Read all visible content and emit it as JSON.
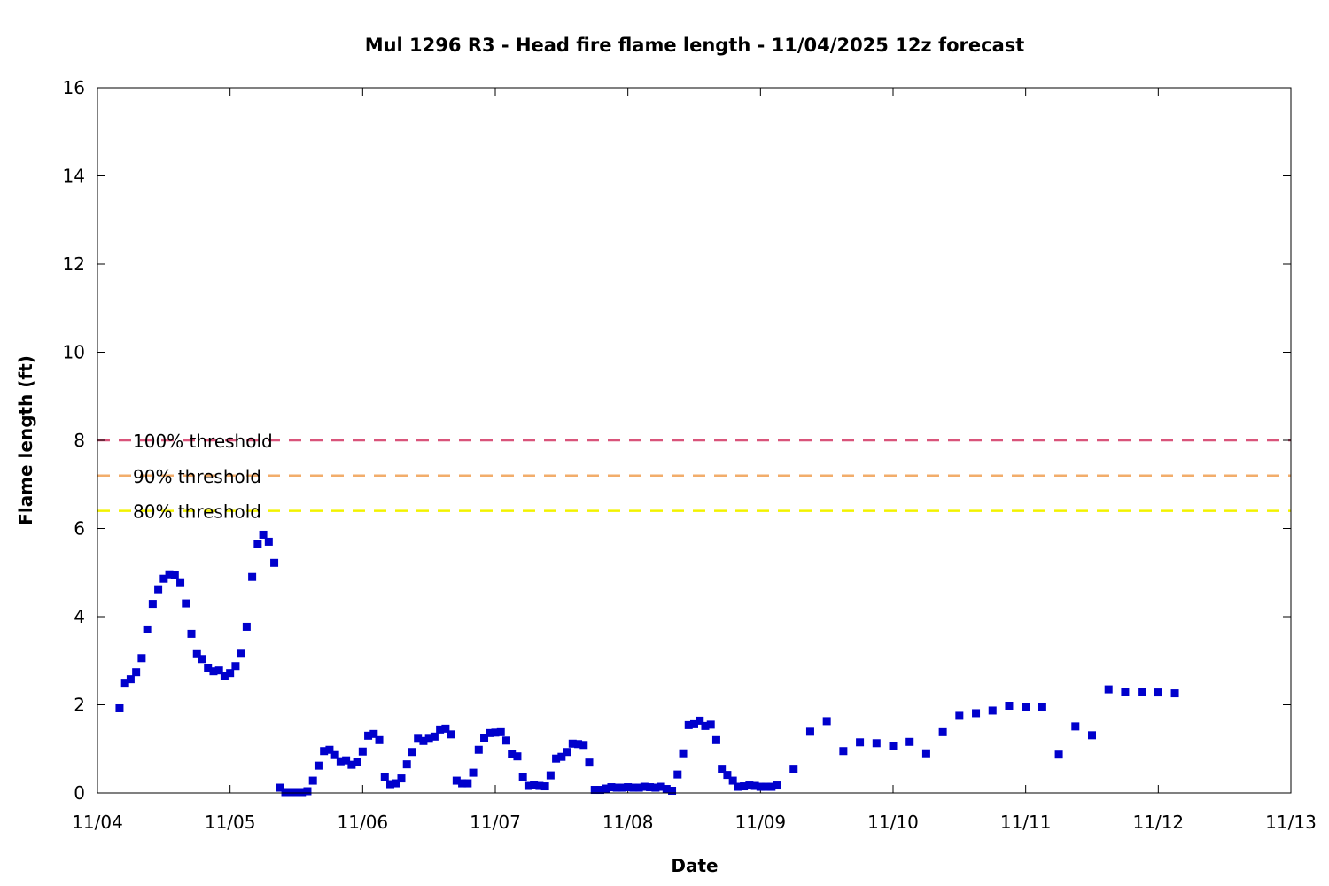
{
  "chart_data": {
    "type": "scatter",
    "title": "Mul 1296 R3 - Head fire flame length - 11/04/2025 12z forecast",
    "xlabel": "Date",
    "ylabel": "Flame length (ft)",
    "x_ticks": [
      "11/04",
      "11/05",
      "11/06",
      "11/07",
      "11/08",
      "11/09",
      "11/10",
      "11/11",
      "11/12",
      "11/13"
    ],
    "xlim": [
      "2025-11-04T00:00",
      "2025-11-13T00:00"
    ],
    "ylim": [
      0,
      16
    ],
    "y_ticks": [
      0,
      2,
      4,
      6,
      8,
      10,
      12,
      14,
      16
    ],
    "grid": false,
    "legend_placement": "left",
    "thresholds": [
      {
        "name": "100% threshold",
        "value": 8.0,
        "color": "#d9547a",
        "style": "dashed"
      },
      {
        "name": "90% threshold",
        "value": 7.2,
        "color": "#f2ad6b",
        "style": "dashed"
      },
      {
        "name": "80% threshold",
        "value": 6.4,
        "color": "#f2f200",
        "style": "dashed"
      }
    ],
    "series": [
      {
        "marker": "square",
        "color": "#0000cc",
        "points": [
          [
            "2025-11-04T04:00",
            1.92
          ],
          [
            "2025-11-04T05:00",
            2.5
          ],
          [
            "2025-11-04T06:00",
            2.58
          ],
          [
            "2025-11-04T07:00",
            2.74
          ],
          [
            "2025-11-04T08:00",
            3.06
          ],
          [
            "2025-11-04T09:00",
            3.71
          ],
          [
            "2025-11-04T10:00",
            4.29
          ],
          [
            "2025-11-04T11:00",
            4.62
          ],
          [
            "2025-11-04T12:00",
            4.86
          ],
          [
            "2025-11-04T13:00",
            4.96
          ],
          [
            "2025-11-04T14:00",
            4.94
          ],
          [
            "2025-11-04T15:00",
            4.78
          ],
          [
            "2025-11-04T16:00",
            4.3
          ],
          [
            "2025-11-04T17:00",
            3.61
          ],
          [
            "2025-11-04T18:00",
            3.15
          ],
          [
            "2025-11-04T19:00",
            3.04
          ],
          [
            "2025-11-04T20:00",
            2.84
          ],
          [
            "2025-11-04T21:00",
            2.76
          ],
          [
            "2025-11-04T22:00",
            2.78
          ],
          [
            "2025-11-04T23:00",
            2.66
          ],
          [
            "2025-11-05T00:00",
            2.72
          ],
          [
            "2025-11-05T01:00",
            2.88
          ],
          [
            "2025-11-05T02:00",
            3.16
          ],
          [
            "2025-11-05T03:00",
            3.77
          ],
          [
            "2025-11-05T04:00",
            4.9
          ],
          [
            "2025-11-05T05:00",
            5.64
          ],
          [
            "2025-11-05T06:00",
            5.86
          ],
          [
            "2025-11-05T07:00",
            5.7
          ],
          [
            "2025-11-05T08:00",
            5.22
          ],
          [
            "2025-11-05T09:00",
            0.12
          ],
          [
            "2025-11-05T10:00",
            0.02
          ],
          [
            "2025-11-05T11:00",
            0.02
          ],
          [
            "2025-11-05T12:00",
            0.02
          ],
          [
            "2025-11-05T13:00",
            0.02
          ],
          [
            "2025-11-05T14:00",
            0.04
          ],
          [
            "2025-11-05T15:00",
            0.28
          ],
          [
            "2025-11-05T16:00",
            0.62
          ],
          [
            "2025-11-05T17:00",
            0.95
          ],
          [
            "2025-11-05T18:00",
            0.98
          ],
          [
            "2025-11-05T19:00",
            0.86
          ],
          [
            "2025-11-05T20:00",
            0.72
          ],
          [
            "2025-11-05T21:00",
            0.74
          ],
          [
            "2025-11-05T22:00",
            0.64
          ],
          [
            "2025-11-05T23:00",
            0.7
          ],
          [
            "2025-11-06T00:00",
            0.94
          ],
          [
            "2025-11-06T01:00",
            1.3
          ],
          [
            "2025-11-06T02:00",
            1.34
          ],
          [
            "2025-11-06T03:00",
            1.2
          ],
          [
            "2025-11-06T04:00",
            0.37
          ],
          [
            "2025-11-06T05:00",
            0.2
          ],
          [
            "2025-11-06T06:00",
            0.22
          ],
          [
            "2025-11-06T07:00",
            0.33
          ],
          [
            "2025-11-06T08:00",
            0.65
          ],
          [
            "2025-11-06T09:00",
            0.93
          ],
          [
            "2025-11-06T10:00",
            1.23
          ],
          [
            "2025-11-06T11:00",
            1.18
          ],
          [
            "2025-11-06T12:00",
            1.23
          ],
          [
            "2025-11-06T13:00",
            1.28
          ],
          [
            "2025-11-06T14:00",
            1.44
          ],
          [
            "2025-11-06T15:00",
            1.46
          ],
          [
            "2025-11-06T16:00",
            1.33
          ],
          [
            "2025-11-06T17:00",
            0.28
          ],
          [
            "2025-11-06T18:00",
            0.22
          ],
          [
            "2025-11-06T19:00",
            0.22
          ],
          [
            "2025-11-06T20:00",
            0.46
          ],
          [
            "2025-11-06T21:00",
            0.98
          ],
          [
            "2025-11-06T22:00",
            1.24
          ],
          [
            "2025-11-06T23:00",
            1.36
          ],
          [
            "2025-11-07T00:00",
            1.37
          ],
          [
            "2025-11-07T01:00",
            1.38
          ],
          [
            "2025-11-07T02:00",
            1.19
          ],
          [
            "2025-11-07T03:00",
            0.88
          ],
          [
            "2025-11-07T04:00",
            0.83
          ],
          [
            "2025-11-07T05:00",
            0.36
          ],
          [
            "2025-11-07T06:00",
            0.16
          ],
          [
            "2025-11-07T07:00",
            0.18
          ],
          [
            "2025-11-07T08:00",
            0.16
          ],
          [
            "2025-11-07T09:00",
            0.15
          ],
          [
            "2025-11-07T10:00",
            0.4
          ],
          [
            "2025-11-07T11:00",
            0.78
          ],
          [
            "2025-11-07T12:00",
            0.82
          ],
          [
            "2025-11-07T13:00",
            0.93
          ],
          [
            "2025-11-07T14:00",
            1.12
          ],
          [
            "2025-11-07T15:00",
            1.11
          ],
          [
            "2025-11-07T16:00",
            1.09
          ],
          [
            "2025-11-07T17:00",
            0.69
          ],
          [
            "2025-11-07T18:00",
            0.07
          ],
          [
            "2025-11-07T19:00",
            0.07
          ],
          [
            "2025-11-07T20:00",
            0.1
          ],
          [
            "2025-11-07T21:00",
            0.13
          ],
          [
            "2025-11-07T22:00",
            0.12
          ],
          [
            "2025-11-07T23:00",
            0.12
          ],
          [
            "2025-11-08T00:00",
            0.13
          ],
          [
            "2025-11-08T01:00",
            0.12
          ],
          [
            "2025-11-08T02:00",
            0.12
          ],
          [
            "2025-11-08T03:00",
            0.14
          ],
          [
            "2025-11-08T04:00",
            0.13
          ],
          [
            "2025-11-08T05:00",
            0.12
          ],
          [
            "2025-11-08T06:00",
            0.14
          ],
          [
            "2025-11-08T07:00",
            0.09
          ],
          [
            "2025-11-08T08:00",
            0.05
          ],
          [
            "2025-11-08T09:00",
            0.42
          ],
          [
            "2025-11-08T10:00",
            0.9
          ],
          [
            "2025-11-08T11:00",
            1.54
          ],
          [
            "2025-11-08T12:00",
            1.56
          ],
          [
            "2025-11-08T13:00",
            1.64
          ],
          [
            "2025-11-08T14:00",
            1.52
          ],
          [
            "2025-11-08T15:00",
            1.55
          ],
          [
            "2025-11-08T16:00",
            1.2
          ],
          [
            "2025-11-08T17:00",
            0.55
          ],
          [
            "2025-11-08T18:00",
            0.41
          ],
          [
            "2025-11-08T19:00",
            0.28
          ],
          [
            "2025-11-08T20:00",
            0.14
          ],
          [
            "2025-11-08T21:00",
            0.15
          ],
          [
            "2025-11-08T22:00",
            0.17
          ],
          [
            "2025-11-08T23:00",
            0.16
          ],
          [
            "2025-11-09T00:00",
            0.14
          ],
          [
            "2025-11-09T01:00",
            0.14
          ],
          [
            "2025-11-09T02:00",
            0.14
          ],
          [
            "2025-11-09T03:00",
            0.17
          ],
          [
            "2025-11-09T06:00",
            0.55
          ],
          [
            "2025-11-09T09:00",
            1.39
          ],
          [
            "2025-11-09T12:00",
            1.63
          ],
          [
            "2025-11-09T15:00",
            0.95
          ],
          [
            "2025-11-09T18:00",
            1.15
          ],
          [
            "2025-11-09T21:00",
            1.13
          ],
          [
            "2025-11-10T00:00",
            1.07
          ],
          [
            "2025-11-10T03:00",
            1.16
          ],
          [
            "2025-11-10T06:00",
            0.9
          ],
          [
            "2025-11-10T09:00",
            1.38
          ],
          [
            "2025-11-10T12:00",
            1.75
          ],
          [
            "2025-11-10T15:00",
            1.81
          ],
          [
            "2025-11-10T18:00",
            1.87
          ],
          [
            "2025-11-10T21:00",
            1.98
          ],
          [
            "2025-11-11T00:00",
            1.94
          ],
          [
            "2025-11-11T03:00",
            1.96
          ],
          [
            "2025-11-11T06:00",
            0.87
          ],
          [
            "2025-11-11T09:00",
            1.51
          ],
          [
            "2025-11-11T12:00",
            1.31
          ],
          [
            "2025-11-11T15:00",
            2.35
          ],
          [
            "2025-11-11T18:00",
            2.3
          ],
          [
            "2025-11-11T21:00",
            2.3
          ],
          [
            "2025-11-12T00:00",
            2.28
          ],
          [
            "2025-11-12T03:00",
            2.26
          ]
        ]
      }
    ]
  }
}
